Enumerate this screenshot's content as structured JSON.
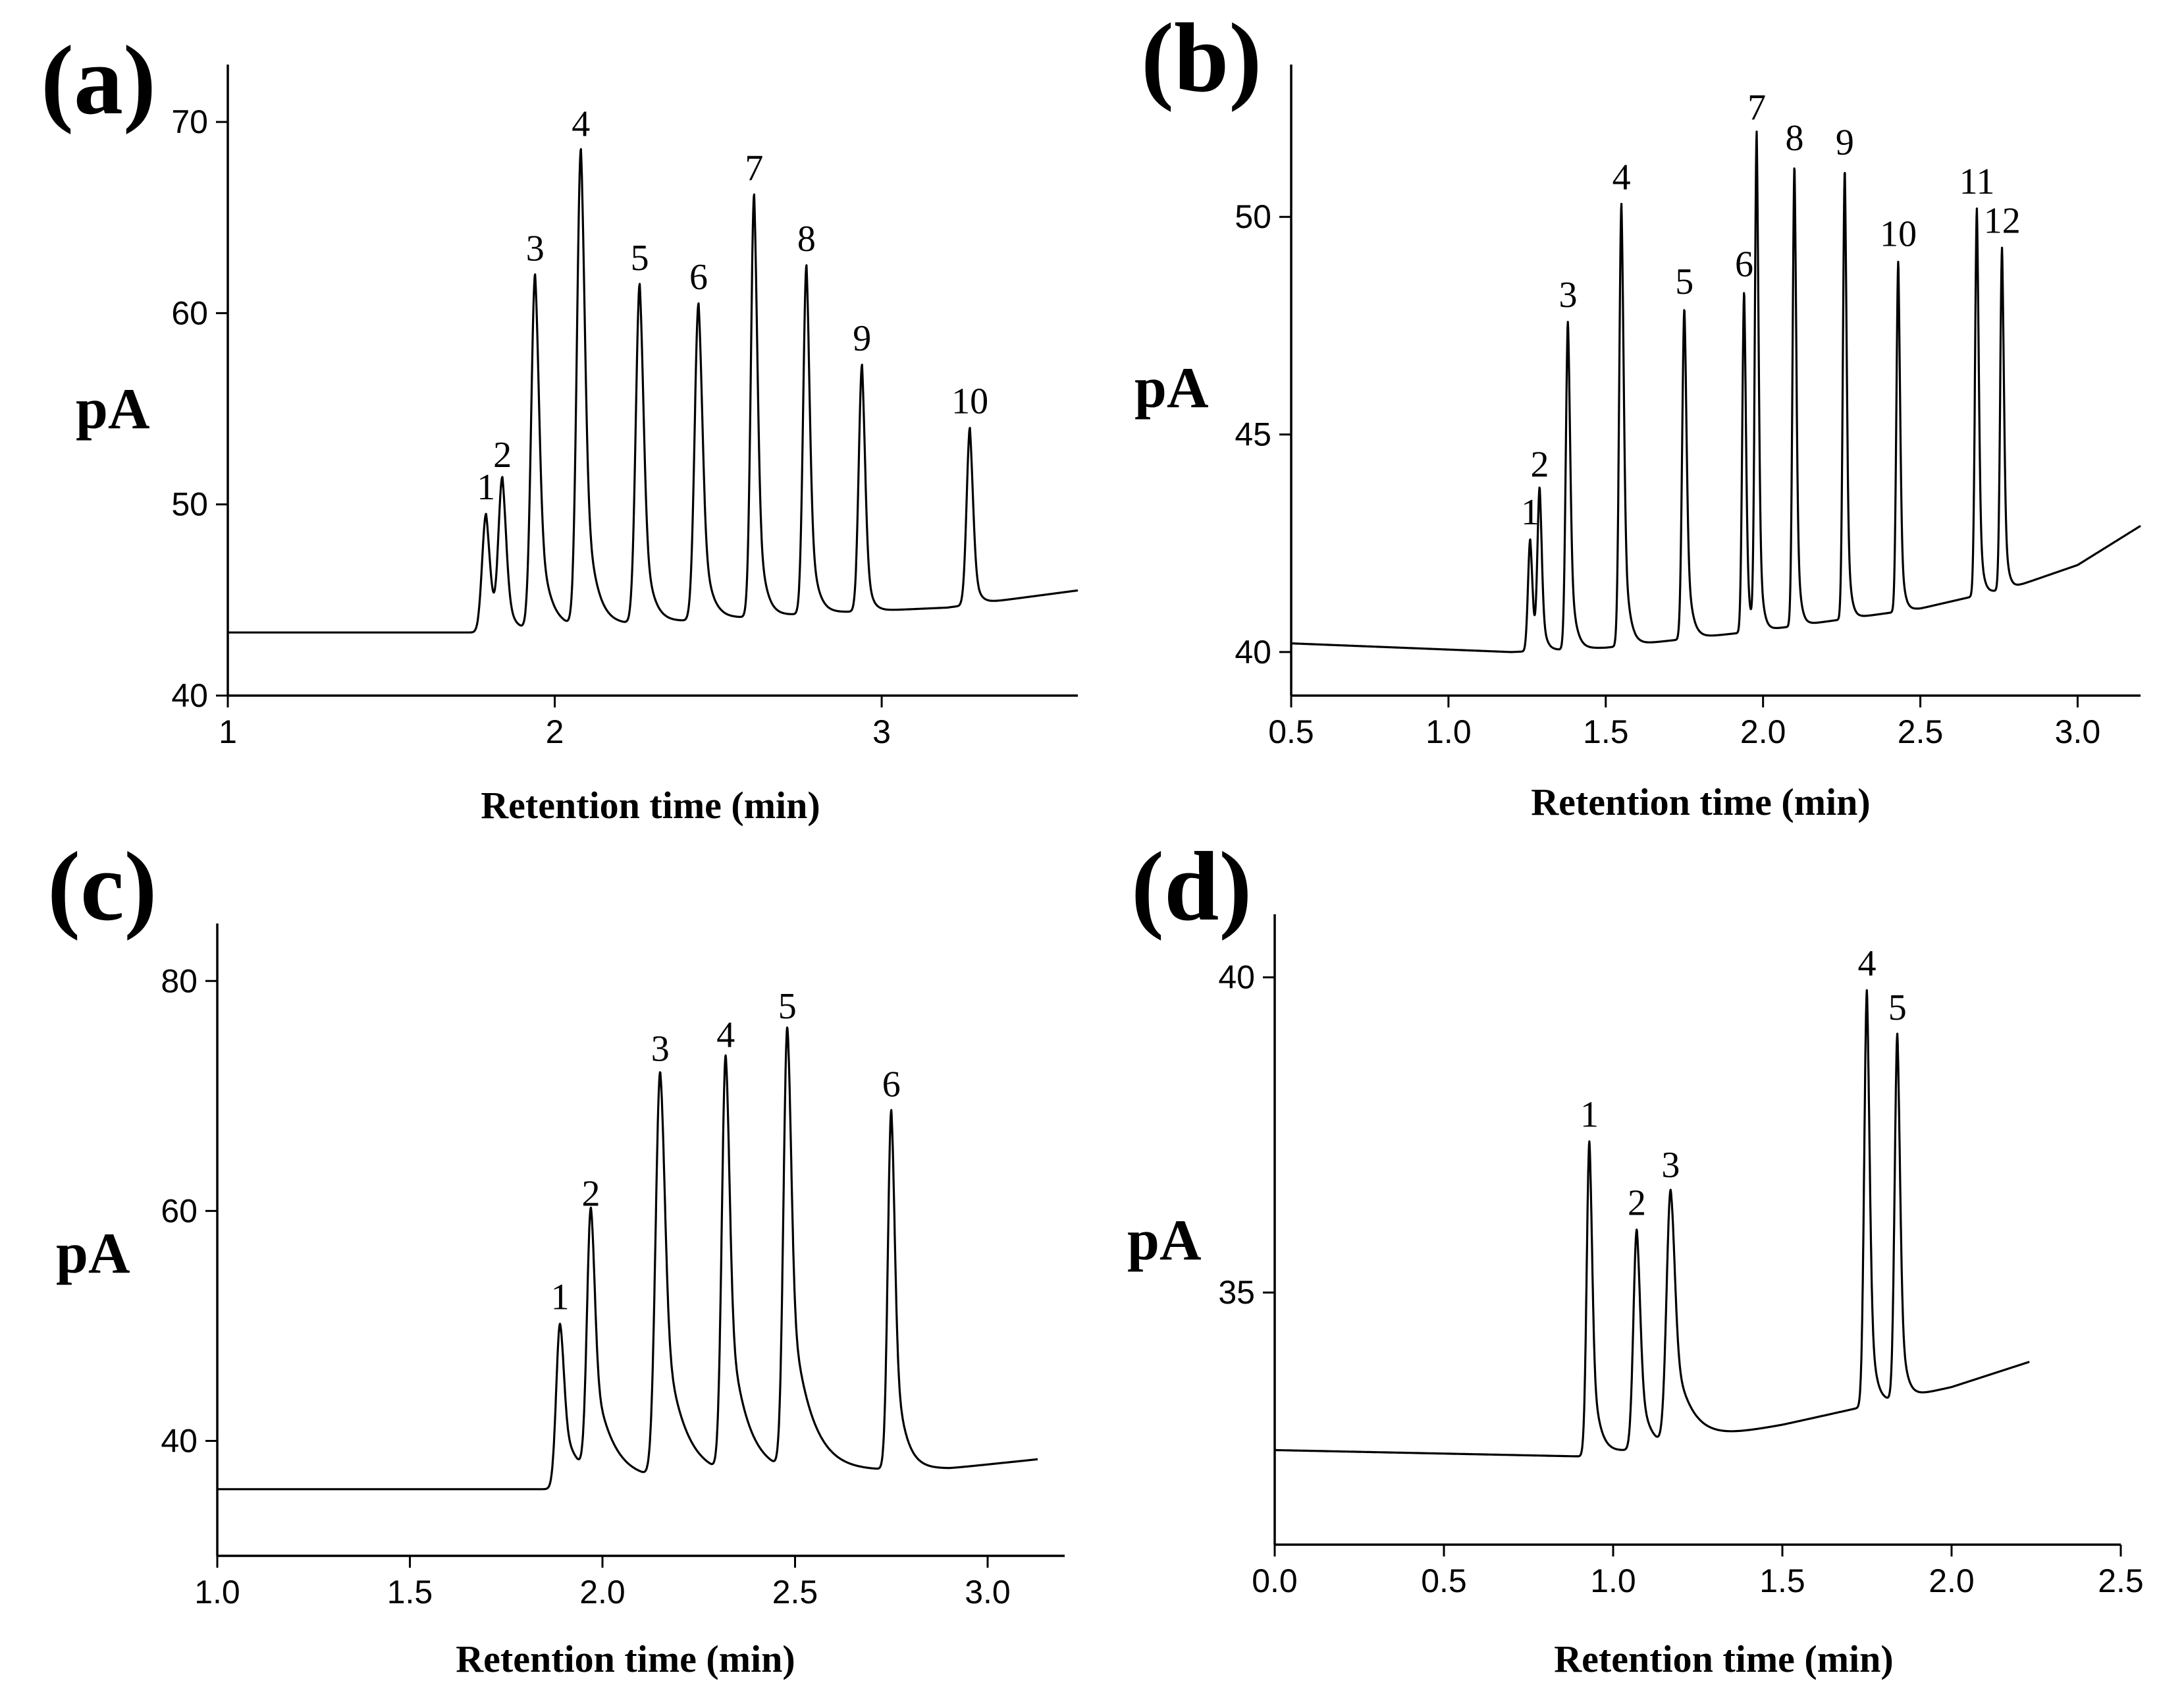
{
  "chart_data": [
    {
      "panel": "(a)",
      "type": "line",
      "xlabel": "Retention time (min)",
      "ylabel": "pA",
      "xlim": [
        1,
        3.6
      ],
      "ylim": [
        40,
        73
      ],
      "xticks": [
        1,
        2,
        3
      ],
      "xtick_labels": [
        "1",
        "2",
        "3"
      ],
      "yticks": [
        40,
        50,
        60,
        70
      ],
      "ytick_labels": [
        "40",
        "50",
        "60",
        "70"
      ],
      "baseline": [
        [
          1.0,
          43.3
        ],
        [
          1.75,
          43.3
        ],
        [
          2.0,
          43.5
        ],
        [
          2.3,
          43.8
        ],
        [
          2.8,
          44.3
        ],
        [
          3.2,
          44.6
        ],
        [
          3.6,
          45.5
        ]
      ],
      "peaks": [
        {
          "label": "1",
          "x": 1.79,
          "y": 49.5,
          "w": 0.012,
          "tail": 0.02
        },
        {
          "label": "2",
          "x": 1.84,
          "y": 51.2,
          "w": 0.012,
          "tail": 0.02
        },
        {
          "label": "3",
          "x": 1.94,
          "y": 62.0,
          "w": 0.012,
          "tail": 0.03
        },
        {
          "label": "4",
          "x": 2.08,
          "y": 68.5,
          "w": 0.012,
          "tail": 0.03
        },
        {
          "label": "5",
          "x": 2.26,
          "y": 61.5,
          "w": 0.012,
          "tail": 0.025
        },
        {
          "label": "6",
          "x": 2.44,
          "y": 60.5,
          "w": 0.012,
          "tail": 0.025
        },
        {
          "label": "7",
          "x": 2.61,
          "y": 66.2,
          "w": 0.01,
          "tail": 0.02
        },
        {
          "label": "8",
          "x": 2.77,
          "y": 62.5,
          "w": 0.01,
          "tail": 0.02
        },
        {
          "label": "9",
          "x": 2.94,
          "y": 57.3,
          "w": 0.01,
          "tail": 0.015
        },
        {
          "label": "10",
          "x": 3.27,
          "y": 54.0,
          "w": 0.01,
          "tail": 0.015
        }
      ]
    },
    {
      "panel": "(b)",
      "type": "line",
      "xlabel": "Retention time (min)",
      "ylabel": "pA",
      "xlim": [
        0.5,
        3.2
      ],
      "ylim": [
        39,
        53.5
      ],
      "xticks": [
        0.5,
        1.0,
        1.5,
        2.0,
        2.5,
        3.0
      ],
      "xtick_labels": [
        "0.5",
        "1.0",
        "1.5",
        "2.0",
        "2.5",
        "3.0"
      ],
      "yticks": [
        40,
        45,
        50
      ],
      "ytick_labels": [
        "40",
        "45",
        "50"
      ],
      "baseline": [
        [
          0.5,
          40.2
        ],
        [
          1.2,
          40.0
        ],
        [
          1.5,
          40.1
        ],
        [
          2.0,
          40.5
        ],
        [
          2.5,
          41.0
        ],
        [
          2.8,
          41.5
        ],
        [
          3.0,
          42.0
        ],
        [
          3.2,
          42.9
        ]
      ],
      "peaks": [
        {
          "label": "1",
          "x": 1.26,
          "y": 42.6,
          "w": 0.007,
          "tail": 0.012
        },
        {
          "label": "2",
          "x": 1.29,
          "y": 43.7,
          "w": 0.007,
          "tail": 0.012
        },
        {
          "label": "3",
          "x": 1.38,
          "y": 47.6,
          "w": 0.007,
          "tail": 0.015
        },
        {
          "label": "4",
          "x": 1.55,
          "y": 50.3,
          "w": 0.007,
          "tail": 0.015
        },
        {
          "label": "5",
          "x": 1.75,
          "y": 47.9,
          "w": 0.007,
          "tail": 0.015
        },
        {
          "label": "6",
          "x": 1.94,
          "y": 48.3,
          "w": 0.006,
          "tail": 0.01
        },
        {
          "label": "7",
          "x": 1.98,
          "y": 51.9,
          "w": 0.006,
          "tail": 0.01
        },
        {
          "label": "8",
          "x": 2.1,
          "y": 51.2,
          "w": 0.006,
          "tail": 0.01
        },
        {
          "label": "9",
          "x": 2.26,
          "y": 51.1,
          "w": 0.006,
          "tail": 0.01
        },
        {
          "label": "10",
          "x": 2.43,
          "y": 49.0,
          "w": 0.006,
          "tail": 0.01
        },
        {
          "label": "11",
          "x": 2.68,
          "y": 50.2,
          "w": 0.006,
          "tail": 0.01
        },
        {
          "label": "12",
          "x": 2.76,
          "y": 49.3,
          "w": 0.006,
          "tail": 0.01
        }
      ]
    },
    {
      "panel": "(c)",
      "type": "line",
      "xlabel": "Retention time (min)",
      "ylabel": "pA",
      "xlim": [
        1.0,
        3.2
      ],
      "ylim": [
        30,
        85
      ],
      "xticks": [
        1.0,
        1.5,
        2.0,
        2.5,
        3.0
      ],
      "xtick_labels": [
        "1.0",
        "1.5",
        "2.0",
        "2.5",
        "3.0"
      ],
      "yticks": [
        40,
        60,
        80
      ],
      "ytick_labels": [
        "40",
        "60",
        "80"
      ],
      "baseline": [
        [
          1.0,
          35.8
        ],
        [
          1.85,
          35.8
        ],
        [
          2.1,
          36.5
        ],
        [
          2.5,
          37.2
        ],
        [
          2.9,
          37.6
        ],
        [
          3.13,
          38.4
        ]
      ],
      "peaks": [
        {
          "label": "1",
          "x": 1.89,
          "y": 50.2,
          "w": 0.01,
          "tail": 0.045
        },
        {
          "label": "2",
          "x": 1.97,
          "y": 59.2,
          "w": 0.01,
          "tail": 0.05
        },
        {
          "label": "3",
          "x": 2.15,
          "y": 71.8,
          "w": 0.012,
          "tail": 0.05
        },
        {
          "label": "4",
          "x": 2.32,
          "y": 73.0,
          "w": 0.01,
          "tail": 0.045
        },
        {
          "label": "5",
          "x": 2.48,
          "y": 75.5,
          "w": 0.01,
          "tail": 0.05
        },
        {
          "label": "6",
          "x": 2.75,
          "y": 68.7,
          "w": 0.009,
          "tail": 0.025
        }
      ]
    },
    {
      "panel": "(d)",
      "type": "line",
      "xlabel": "Retention time (min)",
      "ylabel": "pA",
      "xlim": [
        0.0,
        2.5
      ],
      "ylim": [
        31,
        41
      ],
      "xticks": [
        0.0,
        0.5,
        1.0,
        1.5,
        2.0,
        2.5
      ],
      "xtick_labels": [
        "0.0",
        "0.5",
        "1.0",
        "1.5",
        "2.0",
        "2.5"
      ],
      "yticks": [
        35,
        40
      ],
      "ytick_labels": [
        "35",
        "40"
      ],
      "baseline": [
        [
          0.0,
          32.5
        ],
        [
          0.9,
          32.4
        ],
        [
          1.2,
          32.6
        ],
        [
          1.5,
          32.9
        ],
        [
          1.75,
          33.2
        ],
        [
          2.0,
          33.5
        ],
        [
          2.23,
          33.9
        ]
      ],
      "peaks": [
        {
          "label": "1",
          "x": 0.93,
          "y": 37.4,
          "w": 0.008,
          "tail": 0.02
        },
        {
          "label": "2",
          "x": 1.07,
          "y": 36.0,
          "w": 0.01,
          "tail": 0.025
        },
        {
          "label": "3",
          "x": 1.17,
          "y": 36.6,
          "w": 0.012,
          "tail": 0.05
        },
        {
          "label": "4",
          "x": 1.75,
          "y": 39.8,
          "w": 0.008,
          "tail": 0.015
        },
        {
          "label": "5",
          "x": 1.84,
          "y": 39.1,
          "w": 0.008,
          "tail": 0.015
        }
      ]
    }
  ]
}
